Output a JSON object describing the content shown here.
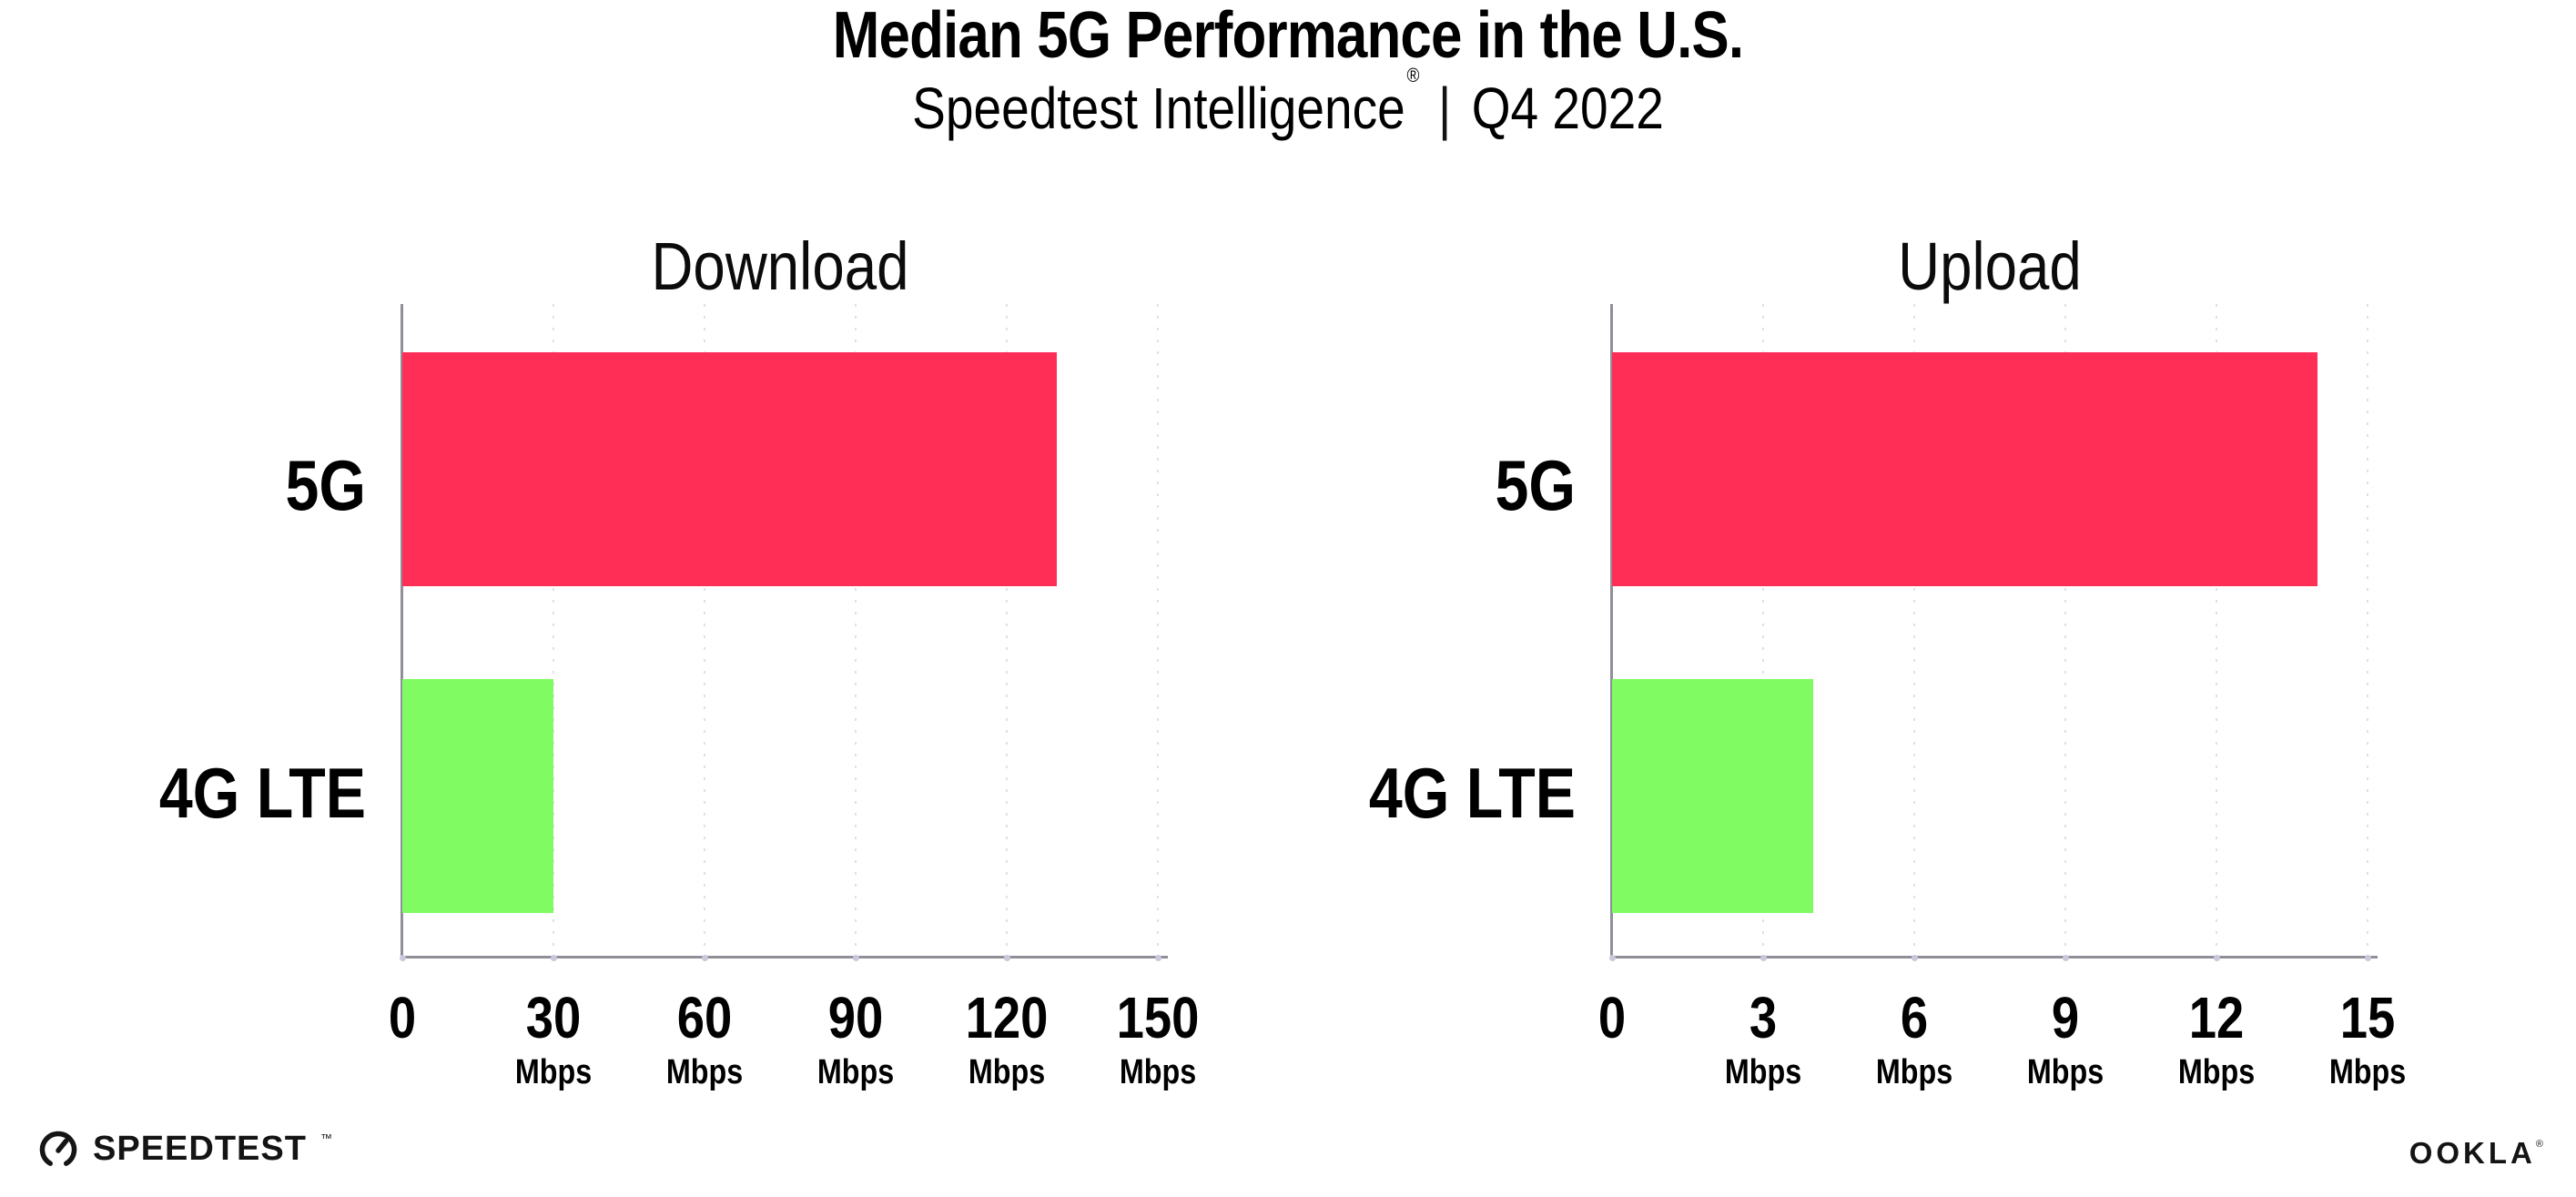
{
  "header": {
    "title": "Median 5G Performance in the U.S.",
    "subtitle": {
      "brand": "Speedtest Intelligence",
      "registered_mark": "®",
      "separator": "|",
      "period": "Q4 2022"
    }
  },
  "chart_data": [
    {
      "type": "bar",
      "orientation": "horizontal",
      "title": "Download",
      "categories": [
        "5G",
        "4G LTE"
      ],
      "values": [
        130,
        30
      ],
      "unit": "Mbps",
      "xlim": [
        0,
        150
      ],
      "xticks": [
        0,
        30,
        60,
        90,
        120,
        150
      ],
      "xtick_unit": "Mbps",
      "bar_colors": [
        "#FF2E57",
        "#80FB62"
      ],
      "grid": "dotted-vertical-gridlines",
      "legend": "none"
    },
    {
      "type": "bar",
      "orientation": "horizontal",
      "title": "Upload",
      "categories": [
        "5G",
        "4G LTE"
      ],
      "values": [
        14,
        4
      ],
      "unit": "Mbps",
      "xlim": [
        0,
        15
      ],
      "xticks": [
        0,
        3,
        6,
        9,
        12,
        15
      ],
      "xtick_unit": "Mbps",
      "bar_colors": [
        "#FF2E57",
        "#80FB62"
      ],
      "grid": "dotted-vertical-gridlines",
      "legend": "none"
    }
  ],
  "footer": {
    "speedtest_wordmark": "SPEEDTEST",
    "speedtest_trademark": "™",
    "ookla_wordmark": "OOKLA",
    "ookla_registered": "®"
  },
  "colors": {
    "bar_5g": "#FF2E57",
    "bar_4g_lte": "#80FB62",
    "axis_line": "#8F8F97",
    "gridline_dot": "#DFDFEA",
    "tick_dot": "#C9C9DB",
    "text": "#000000",
    "background": "#FFFFFF"
  }
}
